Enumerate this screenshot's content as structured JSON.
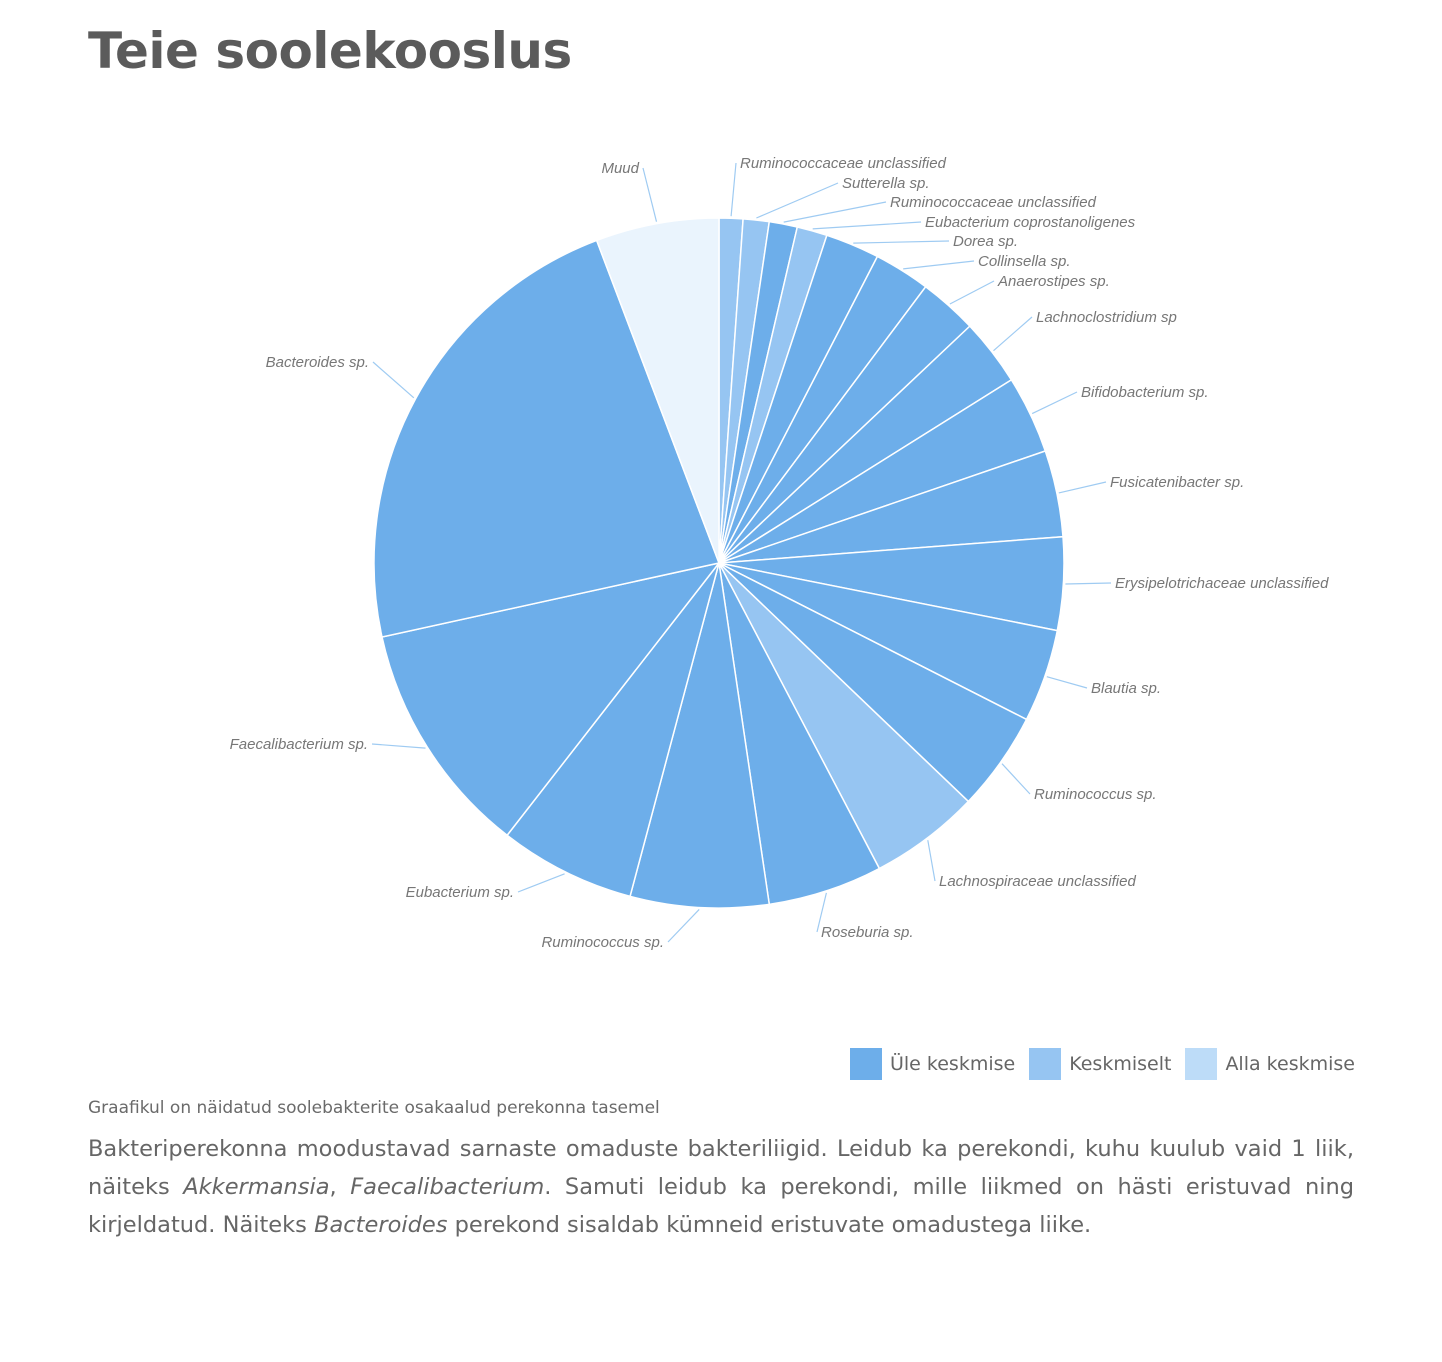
{
  "page": {
    "title": "Teie soolekooslus"
  },
  "legend": [
    {
      "label": "Üle keskmise",
      "color": "#6daeea"
    },
    {
      "label": "Keskmiselt",
      "color": "#96c5f2"
    },
    {
      "label": "Alla keskmise",
      "color": "#bddcf8"
    }
  ],
  "caption": "Graafikul on näidatud soolebakterite osakaalud perekonna tasemel",
  "description": {
    "p1": "Bakteriperekonna moodustavad sarnaste omaduste bakteriliigid. Leidub ka perekondi, kuhu kuulub vaid 1 liik, näiteks ",
    "i1": "Akkermansia",
    "p2": ", ",
    "i2": "Faecalibacterium",
    "p3": ". Samuti leidub ka perekondi, mille liikmed on hästi eristuvad ning kirjeldatud. Näiteks ",
    "i3": "Bacteroides",
    "p4": " perekond sisaldab kümneid eristuvate omadustega liike."
  },
  "chart_data": {
    "type": "pie",
    "start": "top",
    "direction": "clockwise",
    "slices": [
      {
        "label": "Ruminococcaceae unclassified",
        "value": 1.1,
        "category": "Keskmiselt"
      },
      {
        "label": "Sutterella sp.",
        "value": 1.2,
        "category": "Keskmiselt"
      },
      {
        "label": "Ruminococcaceae unclassified",
        "value": 1.3,
        "category": "Üle keskmise"
      },
      {
        "label": "Eubacterium coprostanoligenes",
        "value": 1.4,
        "category": "Keskmiselt"
      },
      {
        "label": "Dorea sp.",
        "value": 2.5,
        "category": "Üle keskmise"
      },
      {
        "label": "Collinsella sp.",
        "value": 2.6,
        "category": "Üle keskmise"
      },
      {
        "label": "Anaerostipes sp.",
        "value": 2.7,
        "category": "Üle keskmise"
      },
      {
        "label": "Lachnoclostridium sp",
        "value": 3.1,
        "category": "Üle keskmise"
      },
      {
        "label": "Bifidobacterium sp.",
        "value": 3.6,
        "category": "Üle keskmise"
      },
      {
        "label": "Fusicatenibacter sp.",
        "value": 4.0,
        "category": "Üle keskmise"
      },
      {
        "label": "Erysipelotrichaceae unclassified",
        "value": 4.3,
        "category": "Üle keskmise"
      },
      {
        "label": "Blautia sp.",
        "value": 4.3,
        "category": "Üle keskmise"
      },
      {
        "label": "Ruminococcus sp.",
        "value": 4.6,
        "category": "Üle keskmise"
      },
      {
        "label": "Lachnospiraceae unclassified",
        "value": 5.1,
        "category": "Keskmiselt"
      },
      {
        "label": "Roseburia sp.",
        "value": 5.3,
        "category": "Üle keskmise"
      },
      {
        "label": "Ruminococcus sp.",
        "value": 6.4,
        "category": "Üle keskmise"
      },
      {
        "label": "Eubacterium sp.",
        "value": 6.3,
        "category": "Üle keskmise"
      },
      {
        "label": "Faecalibacterium sp.",
        "value": 10.9,
        "category": "Üle keskmise"
      },
      {
        "label": "Bacteroides sp.",
        "value": 22.4,
        "category": "Üle keskmise"
      },
      {
        "label": "Muud",
        "value": 5.7,
        "category": "Muud"
      }
    ],
    "colors": {
      "Üle keskmise": "#6daeea",
      "Keskmiselt": "#96c5f2",
      "Alla keskmise": "#bddcf8",
      "Muud": "#eaf4fd"
    }
  }
}
